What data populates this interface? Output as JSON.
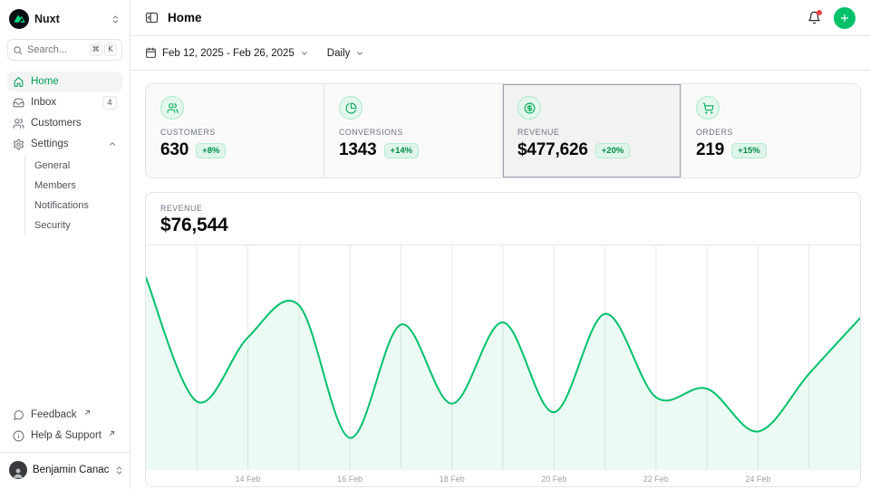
{
  "sidebar": {
    "workspace": {
      "name": "Nuxt"
    },
    "search": {
      "placeholder": "Search...",
      "shortcut_keys": [
        "⌘",
        "K"
      ]
    },
    "nav": [
      {
        "label": "Home",
        "icon": "home-icon",
        "active": true
      },
      {
        "label": "Inbox",
        "icon": "inbox-icon",
        "badge": "4"
      },
      {
        "label": "Customers",
        "icon": "users-icon"
      },
      {
        "label": "Settings",
        "icon": "gear-icon",
        "expanded": true,
        "children": [
          {
            "label": "General"
          },
          {
            "label": "Members"
          },
          {
            "label": "Notifications"
          },
          {
            "label": "Security"
          }
        ]
      }
    ],
    "footer_links": [
      {
        "label": "Feedback",
        "icon": "speech-bubble-icon"
      },
      {
        "label": "Help & Support",
        "icon": "info-circle-icon"
      }
    ],
    "user": {
      "name": "Benjamin Canac"
    }
  },
  "header": {
    "title": "Home"
  },
  "toolbar": {
    "date_range": "Feb 12, 2025 - Feb 26, 2025",
    "granularity": "Daily"
  },
  "stats": {
    "cards": [
      {
        "label": "CUSTOMERS",
        "value": "630",
        "delta": "+8%",
        "icon": "users-icon",
        "selected": false
      },
      {
        "label": "CONVERSIONS",
        "value": "1343",
        "delta": "+14%",
        "icon": "pie-chart-icon",
        "selected": false
      },
      {
        "label": "REVENUE",
        "value": "$477,626",
        "delta": "+20%",
        "icon": "circle-dollar-icon",
        "selected": true
      },
      {
        "label": "ORDERS",
        "value": "219",
        "delta": "+15%",
        "icon": "cart-icon",
        "selected": false
      }
    ]
  },
  "chart_data": {
    "type": "area",
    "title": "REVENUE",
    "headline_value": "$76,544",
    "x": [
      "Feb 12",
      "Feb 13",
      "Feb 14",
      "Feb 15",
      "Feb 16",
      "Feb 17",
      "Feb 18",
      "Feb 19",
      "Feb 20",
      "Feb 21",
      "Feb 22",
      "Feb 23",
      "Feb 24",
      "Feb 25",
      "Feb 26"
    ],
    "values": [
      90000,
      32000,
      62000,
      77000,
      15000,
      68000,
      31000,
      69000,
      27000,
      73000,
      34000,
      38000,
      18000,
      45000,
      71000
    ],
    "x_tick_labels": [
      "14 Feb",
      "16 Feb",
      "18 Feb",
      "20 Feb",
      "22 Feb",
      "24 Feb"
    ],
    "tick_indices": [
      2,
      4,
      6,
      8,
      10,
      12
    ],
    "ylim": [
      0,
      105000
    ],
    "grid": "vertical-daily",
    "legend": "none",
    "line_color": "#00C16A",
    "fill_color": "rgba(0,193,106,0.08)",
    "grid_color": "#e8e8ea"
  },
  "colors": {
    "accent": "#00C16A",
    "badge_text": "#008c48",
    "badge_bg": "#dff5ea",
    "notification_dot": "#ef4444",
    "border": "#e4e4e7"
  }
}
